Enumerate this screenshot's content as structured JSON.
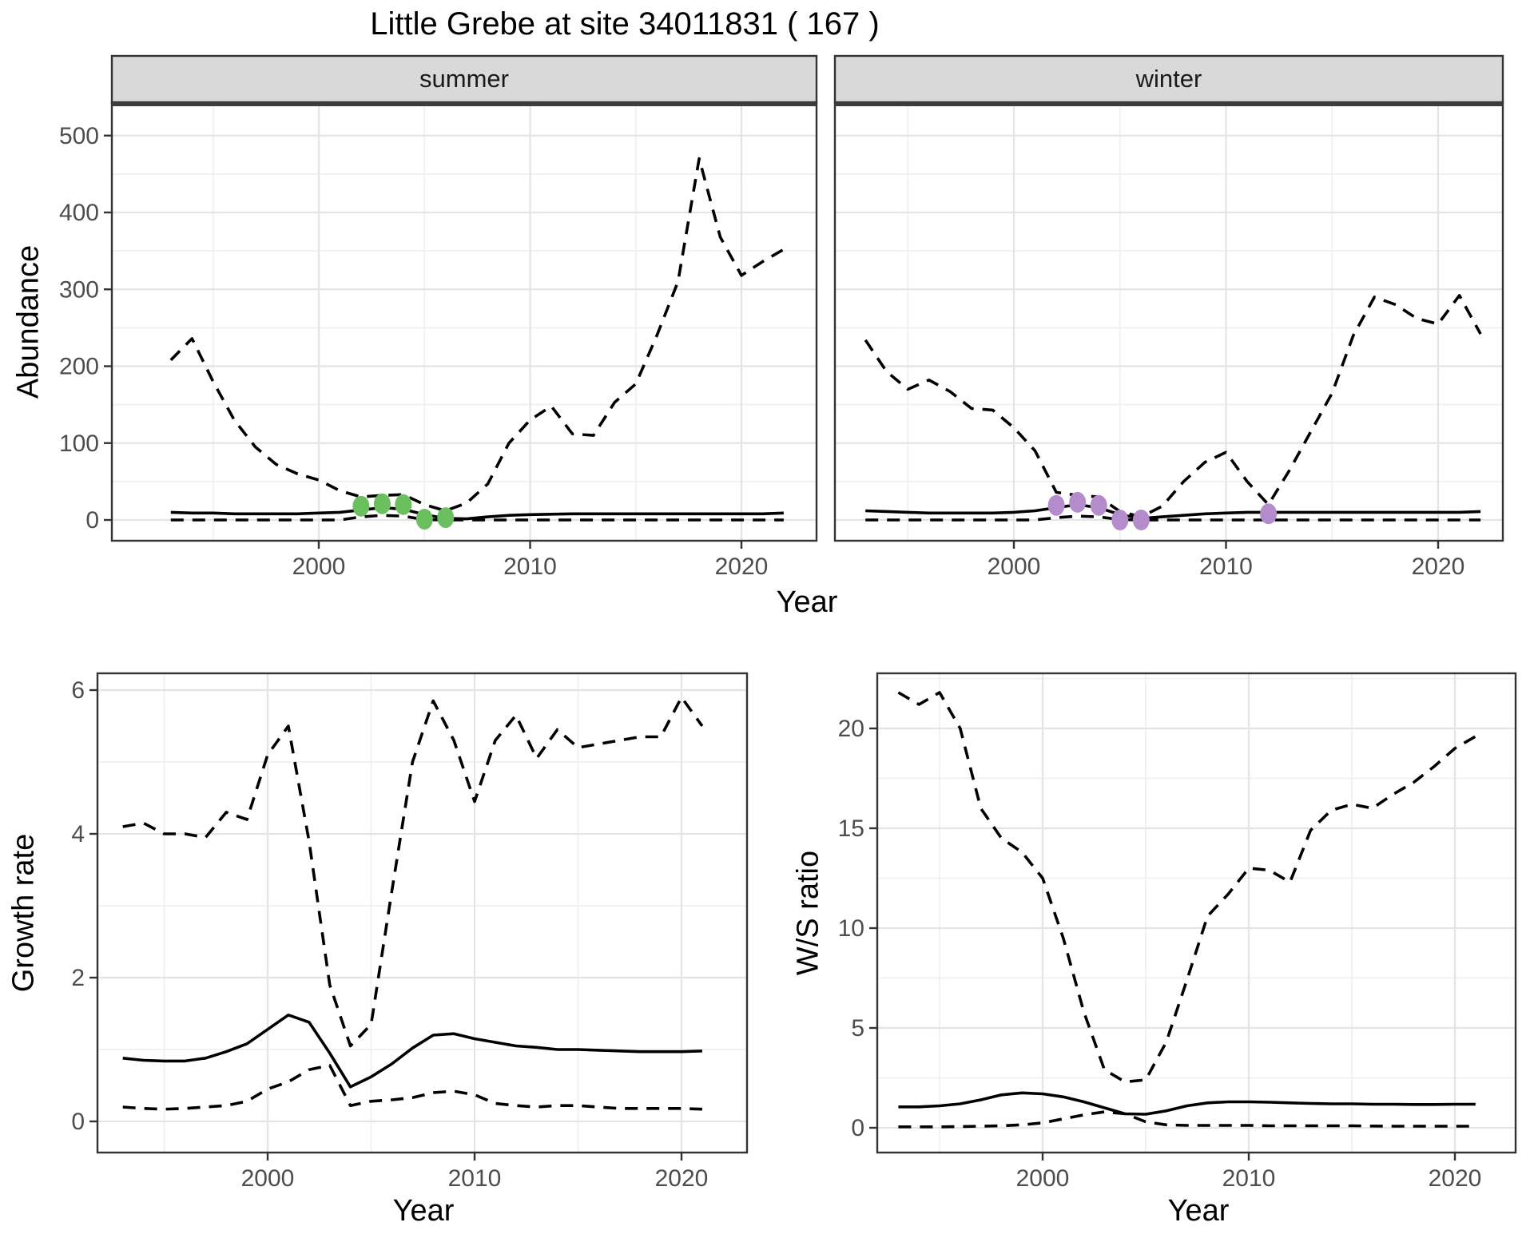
{
  "title": "Little Grebe at site 34011831 ( 167 )",
  "axes": {
    "abundance_label": "Abundance",
    "growth_label": "Growth rate",
    "ws_label": "W/S ratio",
    "year_label": "Year"
  },
  "facets": {
    "summer": "summer",
    "winter": "winter"
  },
  "colors": {
    "summer_points": "#6abf5f",
    "winter_points": "#b48ccc",
    "line": "#000000",
    "strip_bg": "#d9d9d9",
    "panel_border": "#333333",
    "grid_major": "#e4e4e4",
    "grid_minor": "#f0f0f0",
    "tick_label": "#4d4d4d",
    "panel_bg": "#ffffff"
  },
  "chart_data": [
    {
      "id": "abundance-summer",
      "type": "line",
      "title": "summer",
      "xlabel": "Year",
      "ylabel": "Abundance",
      "ylim": [
        0,
        500
      ],
      "yticks": [
        0,
        100,
        200,
        300,
        400,
        500
      ],
      "xticks": [
        2000,
        2010,
        2020
      ],
      "grid": true,
      "legend": "none",
      "x": [
        1993,
        1994,
        1995,
        1996,
        1997,
        1998,
        1999,
        2000,
        2001,
        2002,
        2003,
        2004,
        2005,
        2006,
        2007,
        2008,
        2009,
        2010,
        2011,
        2012,
        2013,
        2014,
        2015,
        2016,
        2017,
        2018,
        2019,
        2020,
        2021,
        2022
      ],
      "series": [
        {
          "name": "median",
          "style": "solid",
          "values": [
            10,
            9,
            9,
            8,
            8,
            8,
            8,
            9,
            10,
            13,
            16,
            14,
            7,
            2,
            1.5,
            4,
            6,
            7,
            7.5,
            8,
            8,
            8,
            8,
            8,
            8,
            8,
            8,
            8,
            8,
            9
          ]
        },
        {
          "name": "upper_ci",
          "style": "dashed",
          "values": [
            208,
            236,
            180,
            130,
            95,
            72,
            60,
            52,
            38,
            30,
            32,
            33,
            20,
            12,
            22,
            47,
            100,
            130,
            148,
            112,
            110,
            153,
            177,
            240,
            310,
            470,
            368,
            318,
            336,
            352
          ]
        },
        {
          "name": "lower_ci",
          "style": "dashed",
          "values": [
            0,
            0,
            0,
            0,
            0,
            0,
            0,
            0,
            0,
            4,
            6,
            5,
            0.5,
            0,
            0,
            0,
            0,
            0,
            0,
            0,
            0,
            0,
            0,
            0,
            0,
            0,
            0,
            0,
            0,
            0
          ]
        }
      ],
      "points": {
        "name": "observed-counts",
        "color": "#6abf5f",
        "x": [
          2002,
          2003,
          2004,
          2005,
          2006
        ],
        "y": [
          18,
          21,
          20,
          1,
          3
        ]
      }
    },
    {
      "id": "abundance-winter",
      "type": "line",
      "title": "winter",
      "xlabel": "Year",
      "ylabel": "Abundance",
      "ylim": [
        0,
        500
      ],
      "yticks": [
        0,
        100,
        200,
        300,
        400,
        500
      ],
      "xticks": [
        2000,
        2010,
        2020
      ],
      "grid": true,
      "legend": "none",
      "x": [
        1993,
        1994,
        1995,
        1996,
        1997,
        1998,
        1999,
        2000,
        2001,
        2002,
        2003,
        2004,
        2005,
        2006,
        2007,
        2008,
        2009,
        2010,
        2011,
        2012,
        2013,
        2014,
        2015,
        2016,
        2017,
        2018,
        2019,
        2020,
        2021,
        2022
      ],
      "series": [
        {
          "name": "median",
          "style": "solid",
          "values": [
            12,
            11,
            10,
            9,
            9,
            9,
            9,
            10,
            12,
            16,
            20,
            16,
            7,
            2,
            4,
            6,
            8,
            9,
            10,
            10,
            10,
            10,
            10,
            10,
            10,
            10,
            10,
            10,
            10,
            11
          ]
        },
        {
          "name": "upper_ci",
          "style": "dashed",
          "values": [
            234,
            193,
            170,
            182,
            167,
            145,
            143,
            120,
            90,
            36,
            32,
            30,
            11,
            4,
            18,
            50,
            75,
            88,
            50,
            20,
            65,
            115,
            165,
            240,
            290,
            280,
            262,
            255,
            292,
            242
          ]
        },
        {
          "name": "lower_ci",
          "style": "dashed",
          "values": [
            0,
            0,
            0,
            0,
            0,
            0,
            0,
            0,
            0,
            3,
            5,
            4,
            0.5,
            0,
            0,
            0,
            0,
            0,
            0,
            0,
            0,
            0,
            0,
            0,
            0,
            0,
            0,
            0,
            0,
            0
          ]
        }
      ],
      "points": {
        "name": "observed-counts",
        "color": "#b48ccc",
        "x": [
          2002,
          2003,
          2004,
          2005,
          2006,
          2012
        ],
        "y": [
          19,
          23,
          19,
          0,
          0,
          8
        ]
      }
    },
    {
      "id": "growth-rate",
      "type": "line",
      "title": "",
      "xlabel": "Year",
      "ylabel": "Growth rate",
      "ylim": [
        0,
        6
      ],
      "yticks": [
        0,
        2,
        4,
        6
      ],
      "xticks": [
        2000,
        2010,
        2020
      ],
      "grid": true,
      "legend": "none",
      "x": [
        1993,
        1994,
        1995,
        1996,
        1997,
        1998,
        1999,
        2000,
        2001,
        2002,
        2003,
        2004,
        2005,
        2006,
        2007,
        2008,
        2009,
        2010,
        2011,
        2012,
        2013,
        2014,
        2015,
        2016,
        2017,
        2018,
        2019,
        2020,
        2021
      ],
      "series": [
        {
          "name": "median",
          "style": "solid",
          "values": [
            0.88,
            0.85,
            0.84,
            0.84,
            0.88,
            0.97,
            1.08,
            1.28,
            1.48,
            1.38,
            0.95,
            0.48,
            0.62,
            0.8,
            1.02,
            1.2,
            1.22,
            1.15,
            1.1,
            1.05,
            1.03,
            1.0,
            1.0,
            0.99,
            0.98,
            0.97,
            0.97,
            0.97,
            0.98
          ]
        },
        {
          "name": "upper_ci",
          "style": "dashed",
          "values": [
            4.1,
            4.15,
            4.0,
            4.0,
            3.95,
            4.3,
            4.2,
            5.1,
            5.5,
            3.9,
            1.9,
            1.05,
            1.35,
            3.2,
            5.0,
            5.85,
            5.3,
            4.45,
            5.3,
            5.65,
            5.05,
            5.45,
            5.2,
            5.25,
            5.3,
            5.35,
            5.35,
            5.9,
            5.5
          ]
        },
        {
          "name": "lower_ci",
          "style": "dashed",
          "values": [
            0.2,
            0.18,
            0.17,
            0.18,
            0.2,
            0.22,
            0.28,
            0.45,
            0.55,
            0.72,
            0.78,
            0.22,
            0.28,
            0.3,
            0.33,
            0.4,
            0.42,
            0.37,
            0.25,
            0.22,
            0.2,
            0.22,
            0.22,
            0.2,
            0.18,
            0.18,
            0.18,
            0.18,
            0.17
          ]
        }
      ]
    },
    {
      "id": "ws-ratio",
      "type": "line",
      "title": "",
      "xlabel": "Year",
      "ylabel": "W/S ratio",
      "ylim": [
        0,
        20
      ],
      "yticks": [
        0,
        5,
        10,
        15,
        20
      ],
      "xticks": [
        2000,
        2010,
        2020
      ],
      "grid": true,
      "legend": "none",
      "x": [
        1993,
        1994,
        1995,
        1996,
        1997,
        1998,
        1999,
        2000,
        2001,
        2002,
        2003,
        2004,
        2005,
        2006,
        2007,
        2008,
        2009,
        2010,
        2011,
        2012,
        2013,
        2014,
        2015,
        2016,
        2017,
        2018,
        2019,
        2020,
        2021
      ],
      "series": [
        {
          "name": "median",
          "style": "solid",
          "values": [
            1.05,
            1.05,
            1.1,
            1.2,
            1.4,
            1.65,
            1.75,
            1.7,
            1.55,
            1.3,
            1.0,
            0.7,
            0.68,
            0.85,
            1.1,
            1.25,
            1.3,
            1.3,
            1.28,
            1.25,
            1.22,
            1.2,
            1.2,
            1.18,
            1.18,
            1.17,
            1.17,
            1.18,
            1.18
          ]
        },
        {
          "name": "upper_ci",
          "style": "dashed",
          "values": [
            21.8,
            21.2,
            21.8,
            20.0,
            16.0,
            14.5,
            13.8,
            12.5,
            9.5,
            5.8,
            2.9,
            2.3,
            2.4,
            4.3,
            7.4,
            10.6,
            11.7,
            13.0,
            12.9,
            12.3,
            14.9,
            15.9,
            16.2,
            16.0,
            16.7,
            17.3,
            18.1,
            19.0,
            19.6
          ]
        },
        {
          "name": "lower_ci",
          "style": "dashed",
          "values": [
            0.05,
            0.05,
            0.05,
            0.06,
            0.08,
            0.1,
            0.15,
            0.25,
            0.45,
            0.65,
            0.8,
            0.7,
            0.3,
            0.15,
            0.12,
            0.12,
            0.12,
            0.12,
            0.1,
            0.1,
            0.1,
            0.1,
            0.1,
            0.09,
            0.08,
            0.08,
            0.08,
            0.08,
            0.08
          ]
        }
      ]
    }
  ]
}
